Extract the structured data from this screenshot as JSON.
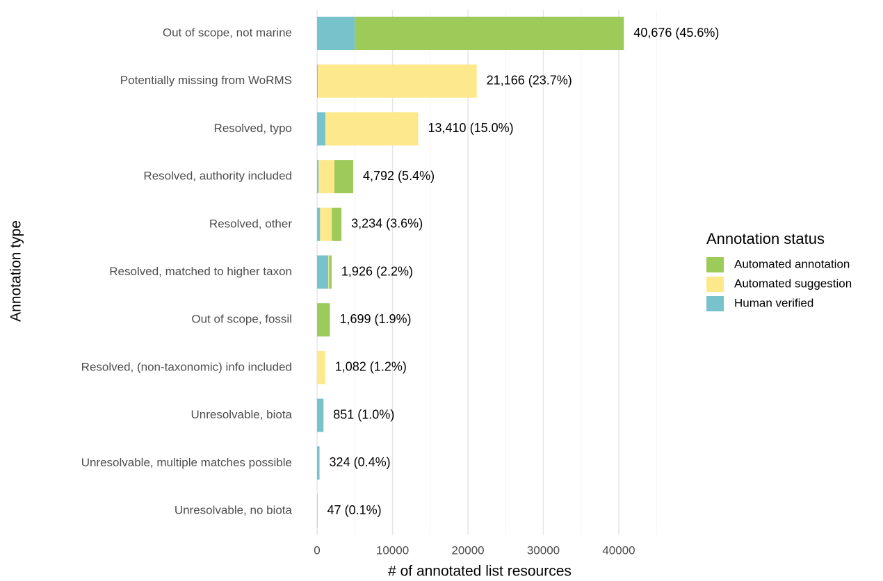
{
  "chart_data": {
    "type": "stacked-barh",
    "xlabel": "# of annotated list resources",
    "ylabel": "Annotation type",
    "legend_title": "Annotation status",
    "categories": [
      "Out of scope, not marine",
      "Potentially missing from WoRMS",
      "Resolved, typo",
      "Resolved, authority included",
      "Resolved, other",
      "Resolved, matched to higher taxon",
      "Out of scope, fossil",
      "Resolved, (non-taxonomic) info included",
      "Unresolvable, biota",
      "Unresolvable, multiple matches possible",
      "Unresolvable, no biota"
    ],
    "series": [
      {
        "name": "Automated annotation",
        "color": "#9dcb5a",
        "values": [
          35676,
          0,
          0,
          2492,
          1284,
          326,
          1699,
          0,
          0,
          0,
          0
        ]
      },
      {
        "name": "Automated suggestion",
        "color": "#fde98c",
        "values": [
          0,
          21066,
          12310,
          2100,
          1550,
          100,
          0,
          1082,
          0,
          0,
          0
        ]
      },
      {
        "name": "Human verified",
        "color": "#78c3cb",
        "values": [
          5000,
          100,
          1100,
          200,
          400,
          1500,
          0,
          0,
          851,
          324,
          47
        ]
      }
    ],
    "totals": [
      40676,
      21166,
      13410,
      4792,
      3234,
      1926,
      1699,
      1082,
      851,
      324,
      47
    ],
    "total_labels": [
      "40,676 (45.6%)",
      "21,166 (23.7%)",
      "13,410 (15.0%)",
      "4,792 (5.4%)",
      "3,234 (3.6%)",
      "1,926 (2.2%)",
      "1,699 (1.9%)",
      "1,082 (1.2%)",
      "851 (1.0%)",
      "324 (0.4%)",
      "47 (0.1%)"
    ],
    "xlim": [
      -1700,
      46500
    ],
    "xticks": [
      0,
      10000,
      20000,
      30000,
      40000
    ],
    "minor_xticks": [
      5000,
      15000,
      25000,
      35000,
      45000
    ],
    "grid": true
  }
}
